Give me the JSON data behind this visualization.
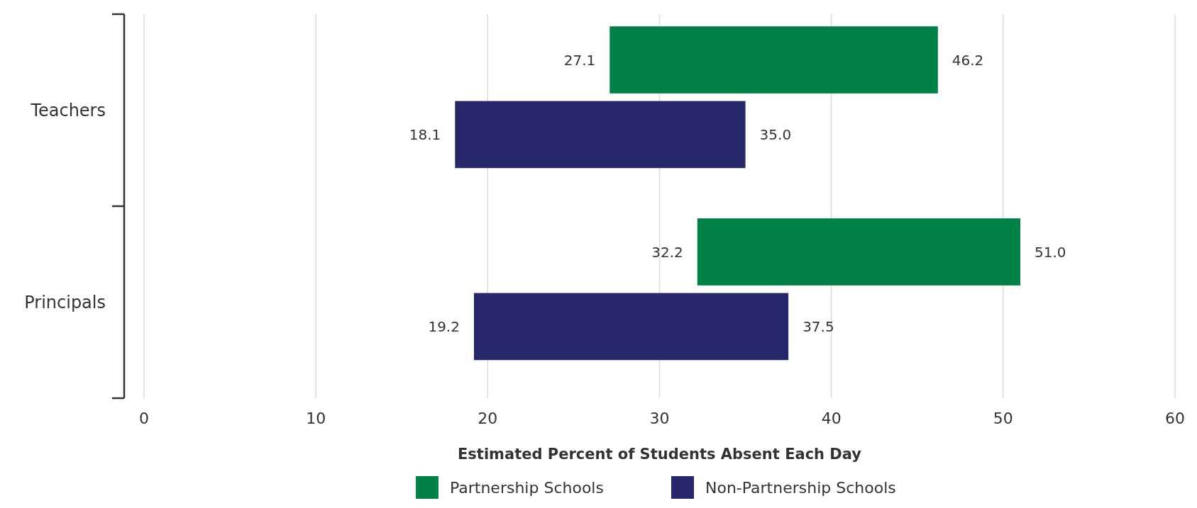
{
  "chart_data": {
    "type": "bar",
    "orientation": "horizontal",
    "xlabel": "Estimated Percent of Students Absent Each Day",
    "categories": [
      "Teachers",
      "Principals"
    ],
    "series": [
      {
        "name": "Partnership Schools",
        "color": "#008145",
        "base": [
          27.1,
          32.2
        ],
        "values": [
          19.1,
          18.8
        ],
        "value_labels": [
          "46.2",
          "51.0"
        ]
      },
      {
        "name": "Non-Partnership Schools",
        "color": "#27276b",
        "base": [
          18.1,
          19.2
        ],
        "values": [
          16.9,
          18.3
        ],
        "value_labels": [
          "35.0",
          "37.5"
        ]
      }
    ],
    "annotations": [
      "27.1",
      "32.2",
      "18.1",
      "19.2"
    ],
    "xlim": [
      0,
      60
    ],
    "xticks": [
      0,
      10,
      20,
      30,
      40,
      50,
      60
    ],
    "grid": "x",
    "legend": "bottom"
  }
}
